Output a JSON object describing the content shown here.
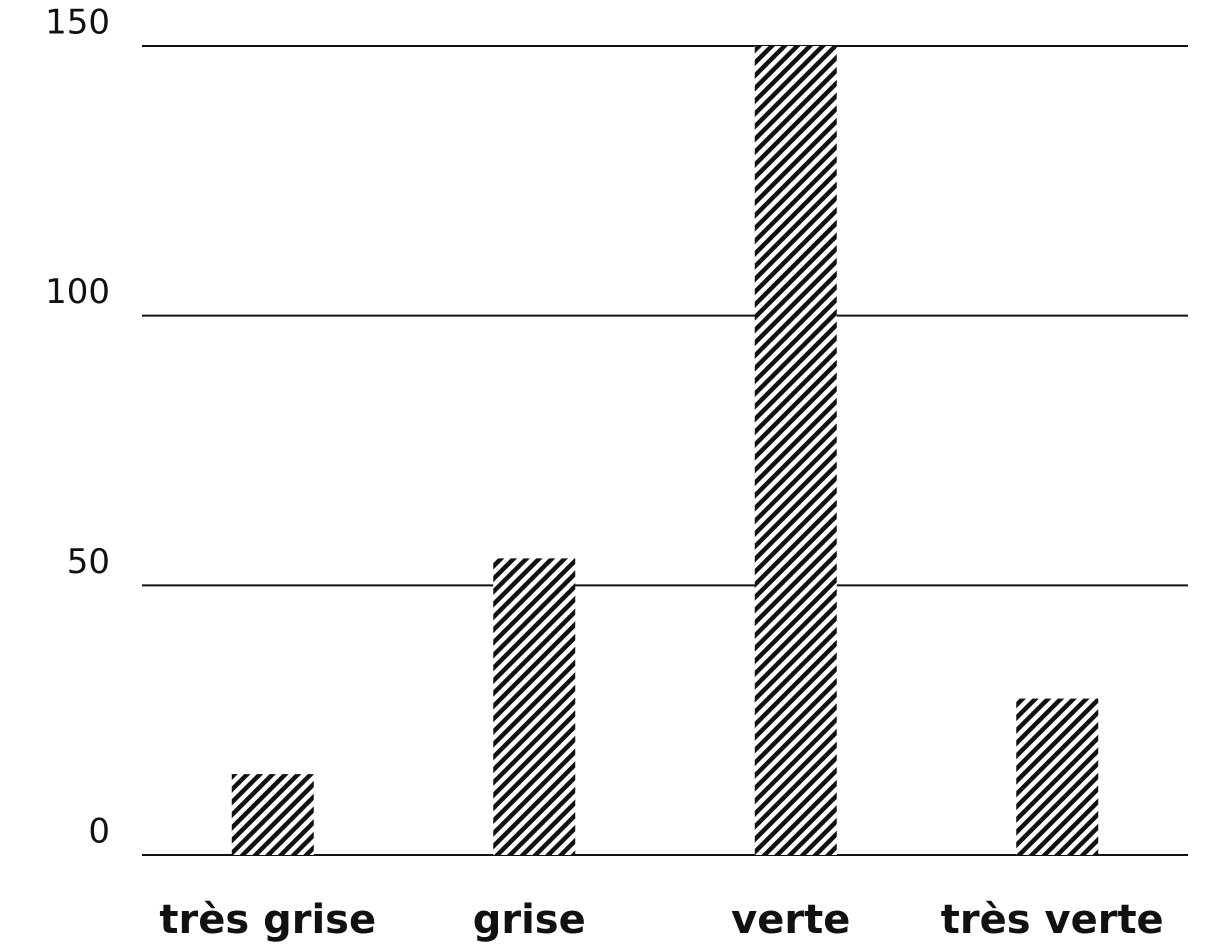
{
  "chart_data": {
    "type": "bar",
    "categories": [
      "très grise",
      "grise",
      "verte",
      "très verte"
    ],
    "values": [
      15,
      55,
      150,
      29
    ],
    "color": "#111111",
    "hatch": true,
    "ylim": [
      0,
      150
    ],
    "yticks": [
      0,
      50,
      100,
      150
    ],
    "grid": true
  }
}
